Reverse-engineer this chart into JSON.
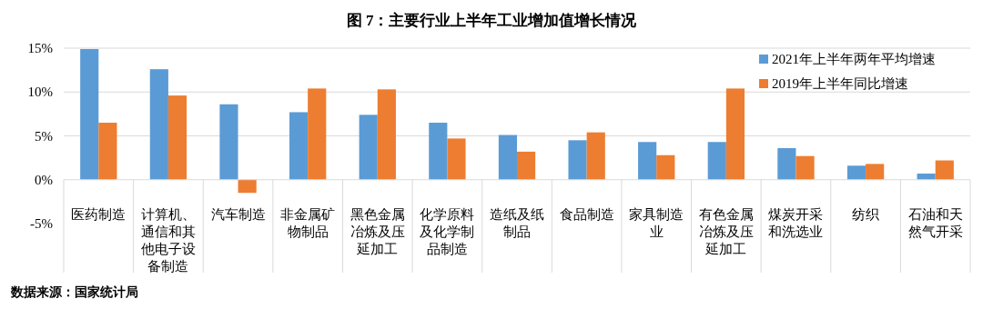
{
  "chart_data": {
    "type": "bar",
    "title": "图 7：主要行业上半年工业增加值增长情况",
    "categories": [
      "医药制造",
      "计算机、通信和其他电子设备制造",
      "汽车制造",
      "非金属矿物制品",
      "黑色金属冶炼及压延加工",
      "化学原料及化学制品制造",
      "造纸及纸制品",
      "食品制造",
      "家具制造业",
      "有色金属冶炼及压延加工",
      "煤炭开采和洗选业",
      "纺织",
      "石油和天然气开采"
    ],
    "series": [
      {
        "name": "2021年上半年两年平均增速",
        "color": "#5b9bd5",
        "values": [
          14.9,
          12.6,
          8.6,
          7.7,
          7.4,
          6.5,
          5.1,
          4.5,
          4.3,
          4.3,
          3.6,
          1.6,
          0.7
        ]
      },
      {
        "name": "2019年上半年同比增速",
        "color": "#ed7d31",
        "values": [
          6.5,
          9.6,
          -1.5,
          10.4,
          10.3,
          4.7,
          3.2,
          5.4,
          2.8,
          10.4,
          2.7,
          1.8,
          2.2
        ]
      }
    ],
    "ylim": [
      -5,
      15
    ],
    "yticks": [
      {
        "value": -5,
        "label": "-5%"
      },
      {
        "value": 0,
        "label": "0%"
      },
      {
        "value": 5,
        "label": "5%"
      },
      {
        "value": 10,
        "label": "10%"
      },
      {
        "value": 15,
        "label": "15%"
      }
    ],
    "grid": "y",
    "legend": "top right",
    "annotations": [
      "数据来源：国家统计局"
    ]
  }
}
